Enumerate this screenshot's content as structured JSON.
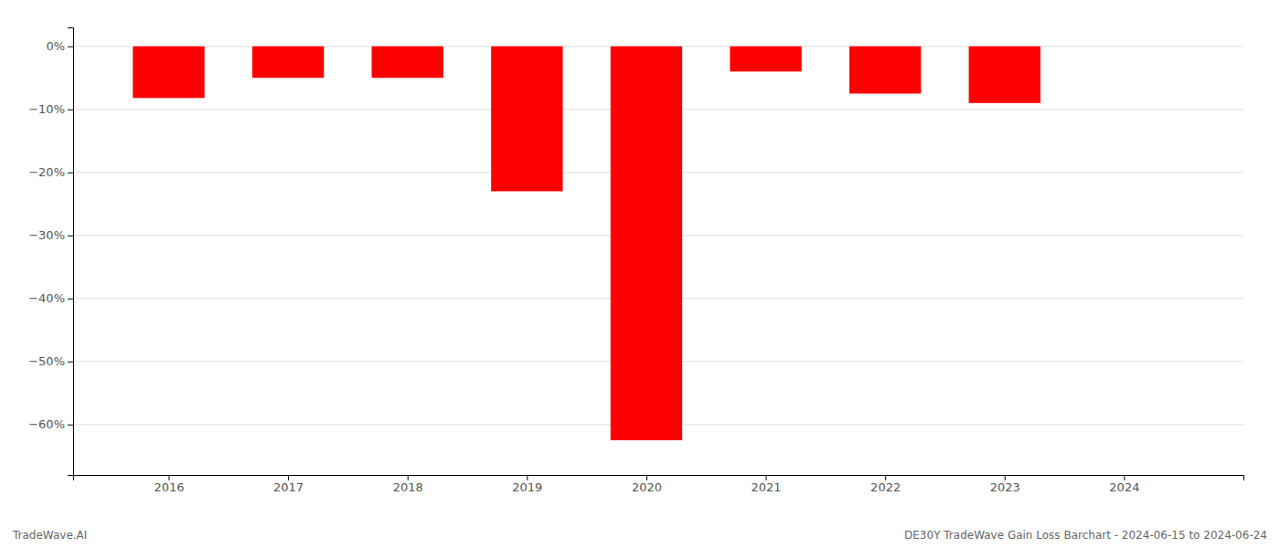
{
  "chart_data": {
    "type": "bar",
    "x": [
      2016,
      2017,
      2018,
      2019,
      2020,
      2021,
      2022,
      2023
    ],
    "values": [
      -8.2,
      -5.0,
      -5.0,
      -23.0,
      -62.5,
      -4.0,
      -7.5,
      -9.0
    ],
    "color": "#ff0000",
    "xlim": [
      2015.2,
      2025.0
    ],
    "xticks": [
      2016,
      2017,
      2018,
      2019,
      2020,
      2021,
      2022,
      2023,
      2024
    ],
    "ylim": [
      -68,
      3
    ],
    "yticks": [
      {
        "value": 0,
        "label": "0%"
      },
      {
        "value": -10,
        "label": "−10%"
      },
      {
        "value": -20,
        "label": "−20%"
      },
      {
        "value": -30,
        "label": "−30%"
      },
      {
        "value": -40,
        "label": "−40%"
      },
      {
        "value": -50,
        "label": "−50%"
      },
      {
        "value": -60,
        "label": "−60%"
      }
    ],
    "grid": true,
    "annotations": [
      "TradeWave.AI",
      "DE30Y TradeWave Gain Loss Barchart - 2024-06-15 to 2024-06-24"
    ]
  }
}
